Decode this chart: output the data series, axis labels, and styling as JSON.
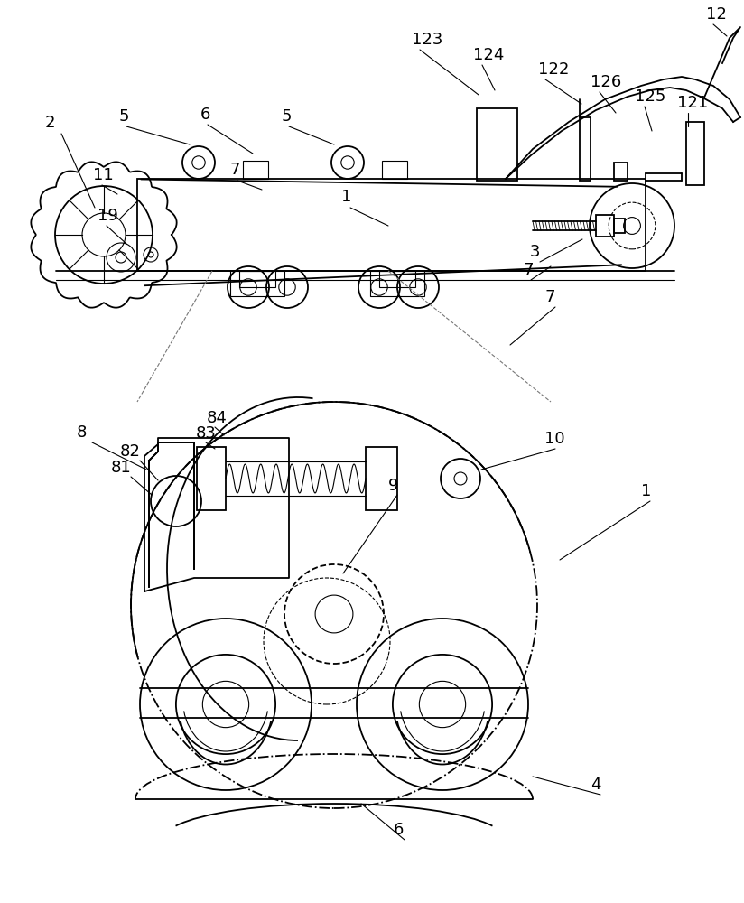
{
  "bg_color": "#ffffff",
  "line_color": "#000000",
  "figsize": [
    8.24,
    10.0
  ],
  "dpi": 100
}
